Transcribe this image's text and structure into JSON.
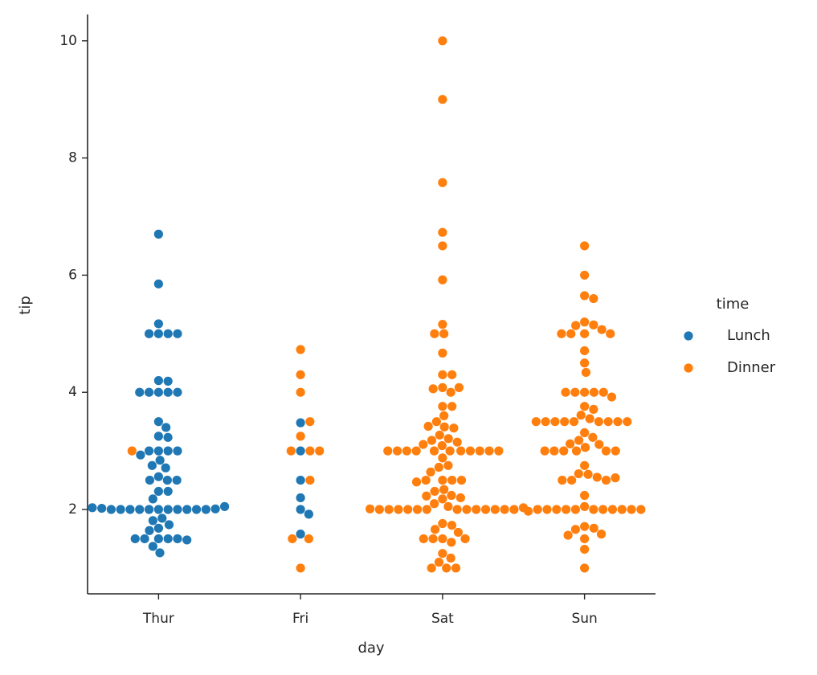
{
  "chart_data": {
    "type": "swarm",
    "x_label": "day",
    "y_label": "tip",
    "legend_title": "time",
    "legend": "right",
    "categories": [
      "Thur",
      "Fri",
      "Sat",
      "Sun"
    ],
    "ylim": [
      0.56,
      10.45
    ],
    "yticks": [
      2,
      4,
      6,
      8,
      10
    ],
    "series": [
      {
        "name": "Lunch",
        "color": "#1f77b4",
        "values": [
          [
            6.7,
            5.85,
            5.17,
            5,
            5,
            5,
            5,
            4.2,
            4.19,
            4,
            4,
            4,
            4,
            4,
            3.5,
            3.4,
            3.25,
            3.23,
            3,
            3,
            3,
            3,
            2.93,
            2.84,
            2.75,
            2.71,
            2.56,
            2.5,
            2.5,
            2.5,
            2.31,
            2.31,
            2.18,
            2,
            2,
            2,
            2,
            2,
            2,
            2,
            2,
            2,
            2,
            2,
            2.01,
            2.02,
            2.03,
            2.05,
            1.85,
            1.81,
            1.74,
            1.68,
            1.64,
            1.5,
            1.5,
            1.5,
            1.5,
            1.5,
            1.48,
            1.37,
            1.26
          ],
          [
            3.48,
            3,
            2.5,
            2.2,
            2,
            1.92,
            1.58
          ],
          [],
          []
        ]
      },
      {
        "name": "Dinner",
        "color": "#ff7f0e",
        "values": [
          [
            3
          ],
          [
            4.73,
            4.3,
            4,
            3.5,
            3.25,
            3,
            3,
            3,
            2.5,
            1.5,
            1.5,
            1
          ],
          [
            10,
            9,
            7.58,
            6.73,
            6.5,
            5.92,
            5.16,
            5,
            5,
            4.67,
            4.3,
            4.3,
            4.08,
            4,
            4.06,
            4.08,
            3.76,
            3.76,
            3.6,
            3.5,
            3.41,
            3.39,
            3.42,
            3.27,
            3.21,
            3.18,
            3.15,
            3.11,
            3.09,
            3,
            3,
            3,
            3,
            3,
            3,
            3,
            3,
            3,
            3,
            3,
            2.88,
            2.75,
            2.72,
            2.64,
            2.5,
            2.5,
            2.5,
            2.5,
            2.47,
            2.34,
            2.31,
            2.24,
            2.23,
            2.2,
            2.18,
            2.1,
            2.05,
            2,
            2,
            2,
            2,
            2,
            2,
            2,
            2,
            2,
            2,
            2,
            2,
            2,
            2.01,
            2.03,
            1.76,
            1.73,
            1.66,
            1.61,
            1.5,
            1.5,
            1.5,
            1.5,
            1.44,
            1.25,
            1.17,
            1.1,
            1,
            1,
            1
          ],
          [
            6.5,
            6,
            5.65,
            5.6,
            5.2,
            5.15,
            5.14,
            5.07,
            5,
            5,
            5,
            5,
            4.71,
            4.5,
            4.34,
            4,
            4,
            4,
            4,
            4,
            3.92,
            3.76,
            3.71,
            3.61,
            3.55,
            3.5,
            3.5,
            3.5,
            3.5,
            3.5,
            3.5,
            3.5,
            3.5,
            3.5,
            3.31,
            3.23,
            3.18,
            3.12,
            3.11,
            3.06,
            3,
            3,
            3,
            3,
            3,
            3,
            2.75,
            2.6,
            2.61,
            2.55,
            2.5,
            2.5,
            2.5,
            2.54,
            2.24,
            2.05,
            2,
            2,
            2,
            2,
            2,
            2,
            2,
            2,
            2,
            2,
            2,
            1.97,
            1.71,
            1.68,
            1.66,
            1.58,
            1.56,
            1.5,
            1.32,
            1
          ]
        ]
      }
    ]
  }
}
